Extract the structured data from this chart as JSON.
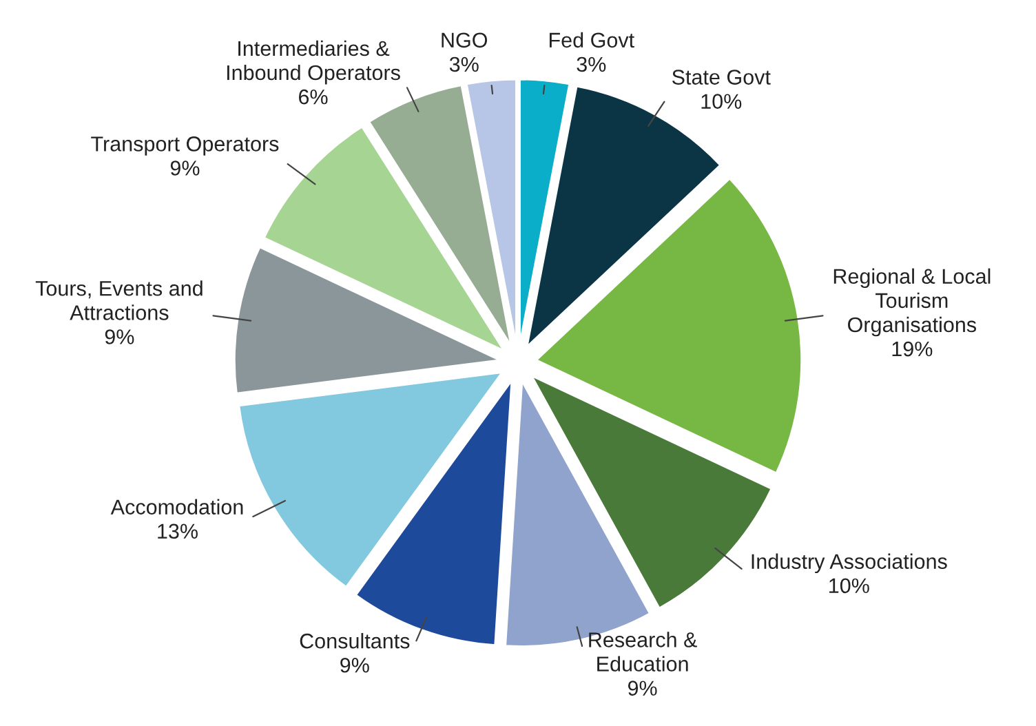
{
  "chart_data": {
    "type": "pie",
    "categories": [
      "Fed Govt",
      "State Govt",
      "Regional & Local\nTourism\nOrganisations",
      "Industry Associations",
      "Research &\nEducation",
      "Consultants",
      "Accomodation",
      "Tours, Events and\nAttractions",
      "Transport Operators",
      "Intermediaries &\nInbound Operators",
      "NGO"
    ],
    "values": [
      3,
      10,
      19,
      10,
      9,
      9,
      13,
      9,
      9,
      6,
      3
    ],
    "value_labels": [
      "3%",
      "10%",
      "19%",
      "10%",
      "9%",
      "9%",
      "13%",
      "9%",
      "9%",
      "6%",
      "3%"
    ],
    "colors": [
      "#0aaec8",
      "#0b3545",
      "#76b843",
      "#4a7a3a",
      "#8fa3cc",
      "#1e4a9c",
      "#82c8de",
      "#8b969a",
      "#a5d493",
      "#96ad94",
      "#b7c5e6"
    ],
    "legend": false
  }
}
